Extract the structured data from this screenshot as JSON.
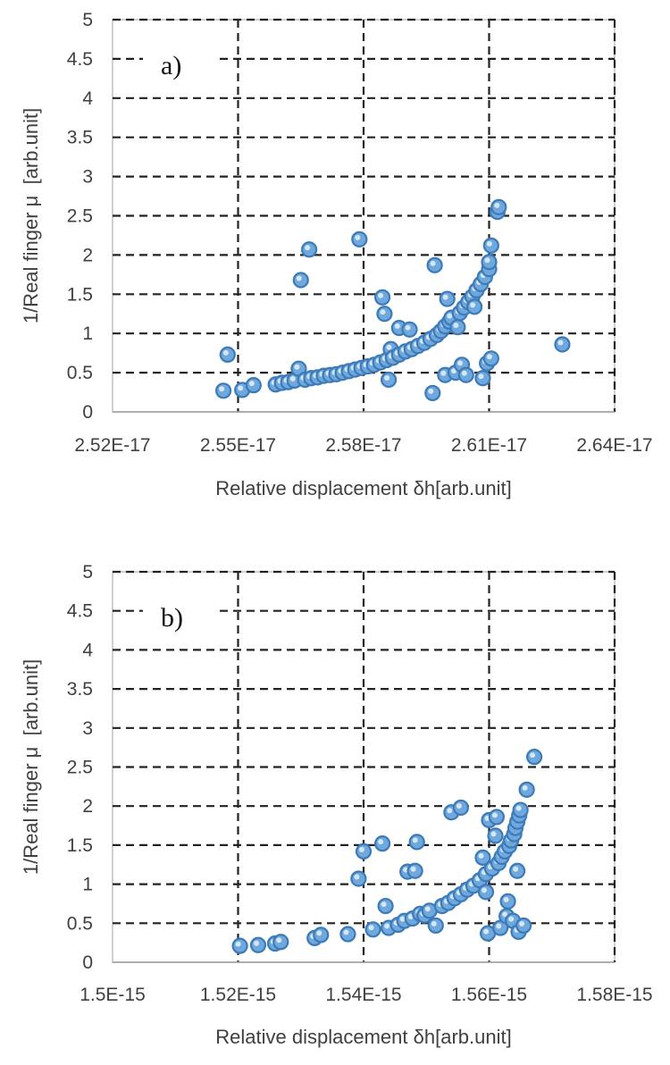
{
  "chart_data": [
    {
      "type": "scatter",
      "panel_label": "a)",
      "xlabel": "Relative displacement δh[arb.unit]",
      "ylabel": "1/Real finger μ  [arb.unit]",
      "xlim": [
        2.52e-17,
        2.64e-17
      ],
      "ylim": [
        0,
        5
      ],
      "x_ticks": [
        2.52e-17,
        2.55e-17,
        2.58e-17,
        2.61e-17,
        2.64e-17
      ],
      "x_tick_labels": [
        "2.52E-17",
        "2.55E-17",
        "2.58E-17",
        "2.61E-17",
        "2.64E-17"
      ],
      "y_ticks": [
        0,
        0.5,
        1,
        1.5,
        2,
        2.5,
        3,
        3.5,
        4,
        4.5,
        5
      ],
      "y_tick_labels": [
        "0",
        "0.5",
        "1",
        "1.5",
        "2",
        "2.5",
        "3",
        "3.5",
        "4",
        "4.5",
        "5"
      ],
      "grid": true,
      "grid_style": "dashed",
      "marker_color": "#6fa8dc",
      "marker_edge": "#3d7ab8",
      "points": [
        [
          2.5465e-17,
          0.27
        ],
        [
          2.5475e-17,
          0.73
        ],
        [
          2.551e-17,
          0.28
        ],
        [
          2.5537e-17,
          0.34
        ],
        [
          2.559e-17,
          0.35
        ],
        [
          2.5605e-17,
          0.37
        ],
        [
          2.562e-17,
          0.38
        ],
        [
          2.5635e-17,
          0.4
        ],
        [
          2.5645e-17,
          0.55
        ],
        [
          2.565e-17,
          1.68
        ],
        [
          2.566e-17,
          0.41
        ],
        [
          2.567e-17,
          2.07
        ],
        [
          2.5675e-17,
          0.43
        ],
        [
          2.569e-17,
          0.44
        ],
        [
          2.5705e-17,
          0.46
        ],
        [
          2.572e-17,
          0.47
        ],
        [
          2.5735e-17,
          0.48
        ],
        [
          2.575e-17,
          0.5
        ],
        [
          2.5765e-17,
          0.52
        ],
        [
          2.578e-17,
          0.54
        ],
        [
          2.579e-17,
          2.2
        ],
        [
          2.5795e-17,
          0.56
        ],
        [
          2.581e-17,
          0.58
        ],
        [
          2.5825e-17,
          0.6
        ],
        [
          2.584e-17,
          0.63
        ],
        [
          2.5845e-17,
          1.46
        ],
        [
          2.585e-17,
          1.25
        ],
        [
          2.5855e-17,
          0.66
        ],
        [
          2.586e-17,
          0.41
        ],
        [
          2.5865e-17,
          0.8
        ],
        [
          2.587e-17,
          0.69
        ],
        [
          2.5885e-17,
          1.07
        ],
        [
          2.5885e-17,
          0.73
        ],
        [
          2.59e-17,
          0.77
        ],
        [
          2.591e-17,
          1.05
        ],
        [
          2.5915e-17,
          0.8
        ],
        [
          2.593e-17,
          0.84
        ],
        [
          2.5945e-17,
          0.88
        ],
        [
          2.596e-17,
          0.93
        ],
        [
          2.5965e-17,
          0.24
        ],
        [
          2.597e-17,
          1.87
        ],
        [
          2.5975e-17,
          0.98
        ],
        [
          2.5985e-17,
          1.03
        ],
        [
          2.5995e-17,
          1.09
        ],
        [
          2.5995e-17,
          0.47
        ],
        [
          2.6e-17,
          1.44
        ],
        [
          2.6005e-17,
          1.15
        ],
        [
          2.601e-17,
          1.2
        ],
        [
          2.602e-17,
          0.5
        ],
        [
          2.6025e-17,
          1.08
        ],
        [
          2.603e-17,
          1.26
        ],
        [
          2.6035e-17,
          0.6
        ],
        [
          2.604e-17,
          1.33
        ],
        [
          2.6045e-17,
          0.47
        ],
        [
          2.605e-17,
          1.4
        ],
        [
          2.606e-17,
          1.47
        ],
        [
          2.6065e-17,
          1.34
        ],
        [
          2.607e-17,
          1.55
        ],
        [
          2.608e-17,
          1.63
        ],
        [
          2.6085e-17,
          0.43
        ],
        [
          2.609e-17,
          1.72
        ],
        [
          2.6095e-17,
          0.62
        ],
        [
          2.61e-17,
          1.82
        ],
        [
          2.61e-17,
          1.91
        ],
        [
          2.6105e-17,
          0.68
        ],
        [
          2.6105e-17,
          2.12
        ],
        [
          2.612e-17,
          2.55
        ],
        [
          2.6123e-17,
          2.61
        ],
        [
          2.6275e-17,
          0.86
        ]
      ]
    },
    {
      "type": "scatter",
      "panel_label": "b)",
      "xlabel": "Relative displacement δh[arb.unit]",
      "ylabel": "1/Real finger μ  [arb.unit]",
      "xlim": [
        1.5e-15,
        1.58e-15
      ],
      "ylim": [
        0,
        5
      ],
      "x_ticks": [
        1.5e-15,
        1.52e-15,
        1.54e-15,
        1.56e-15,
        1.58e-15
      ],
      "x_tick_labels": [
        "1.5E-15",
        "1.52E-15",
        "1.54E-15",
        "1.56E-15",
        "1.58E-15"
      ],
      "y_ticks": [
        0,
        0.5,
        1,
        1.5,
        2,
        2.5,
        3,
        3.5,
        4,
        4.5,
        5
      ],
      "y_tick_labels": [
        "0",
        "0.5",
        "1",
        "1.5",
        "2",
        "2.5",
        "3",
        "3.5",
        "4",
        "4.5",
        "5"
      ],
      "grid": true,
      "grid_style": "dashed",
      "marker_color": "#6fa8dc",
      "marker_edge": "#3d7ab8",
      "points": [
        [
          1.5203e-15,
          0.21
        ],
        [
          1.5232e-15,
          0.22
        ],
        [
          1.5259e-15,
          0.24
        ],
        [
          1.5268e-15,
          0.26
        ],
        [
          1.5322e-15,
          0.31
        ],
        [
          1.5332e-15,
          0.35
        ],
        [
          1.5375e-15,
          0.36
        ],
        [
          1.5392e-15,
          1.07
        ],
        [
          1.54e-15,
          1.42
        ],
        [
          1.5415e-15,
          0.42
        ],
        [
          1.543e-15,
          1.52
        ],
        [
          1.5435e-15,
          0.72
        ],
        [
          1.544e-15,
          0.44
        ],
        [
          1.5455e-15,
          0.48
        ],
        [
          1.5465e-15,
          0.53
        ],
        [
          1.547e-15,
          1.16
        ],
        [
          1.5478e-15,
          0.56
        ],
        [
          1.5482e-15,
          1.17
        ],
        [
          1.5485e-15,
          1.54
        ],
        [
          1.549e-15,
          0.62
        ],
        [
          1.5497e-15,
          0.6
        ],
        [
          1.5505e-15,
          0.66
        ],
        [
          1.5515e-15,
          0.47
        ],
        [
          1.5525e-15,
          0.72
        ],
        [
          1.5535e-15,
          0.76
        ],
        [
          1.554e-15,
          1.92
        ],
        [
          1.5545e-15,
          0.82
        ],
        [
          1.5555e-15,
          0.87
        ],
        [
          1.5555e-15,
          1.98
        ],
        [
          1.5565e-15,
          0.93
        ],
        [
          1.5575e-15,
          0.98
        ],
        [
          1.5585e-15,
          1.05
        ],
        [
          1.559e-15,
          1.34
        ],
        [
          1.5595e-15,
          0.9
        ],
        [
          1.5595e-15,
          1.13
        ],
        [
          1.5598e-15,
          0.37
        ],
        [
          1.56e-15,
          1.82
        ],
        [
          1.5605e-15,
          1.2
        ],
        [
          1.561e-15,
          1.62
        ],
        [
          1.5612e-15,
          1.86
        ],
        [
          1.5615e-15,
          1.27
        ],
        [
          1.5618e-15,
          0.44
        ],
        [
          1.562e-15,
          1.35
        ],
        [
          1.5625e-15,
          1.42
        ],
        [
          1.5628e-15,
          0.59
        ],
        [
          1.563e-15,
          0.78
        ],
        [
          1.5632e-15,
          1.49
        ],
        [
          1.5635e-15,
          1.56
        ],
        [
          1.5638e-15,
          0.53
        ],
        [
          1.564e-15,
          1.64
        ],
        [
          1.5642e-15,
          1.72
        ],
        [
          1.5645e-15,
          1.8
        ],
        [
          1.5645e-15,
          1.17
        ],
        [
          1.5647e-15,
          0.39
        ],
        [
          1.5648e-15,
          1.88
        ],
        [
          1.565e-15,
          1.95
        ],
        [
          1.5655e-15,
          0.47
        ],
        [
          1.566e-15,
          2.21
        ],
        [
          1.5672e-15,
          2.63
        ]
      ]
    }
  ]
}
